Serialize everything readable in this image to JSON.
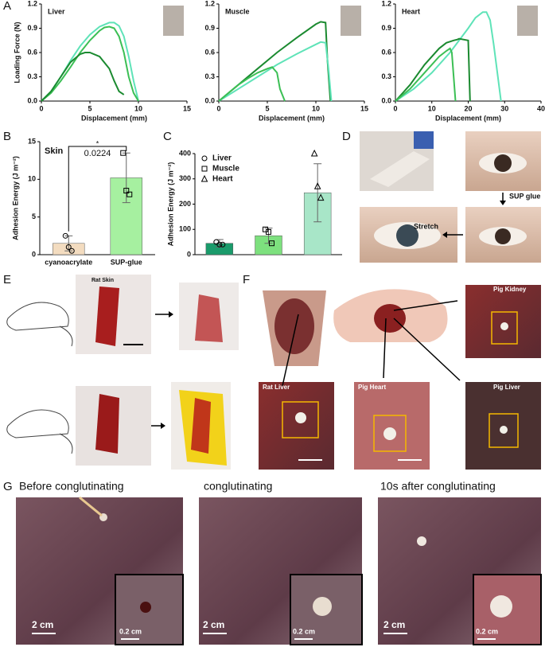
{
  "chart_data": [
    {
      "type": "line",
      "title": "Liver",
      "xlabel": "Displacement (mm)",
      "ylabel": "Loading Force (N)",
      "xlim": [
        0,
        15
      ],
      "xticks": [
        0,
        5,
        10,
        15
      ],
      "ylim": [
        0,
        1.2
      ],
      "yticks": [
        {
          "value": 0,
          "label": "0.0"
        },
        {
          "value": 0.3,
          "label": "0.3"
        },
        {
          "value": 0.6,
          "label": "0.6"
        },
        {
          "value": 0.9,
          "label": "0.9"
        },
        {
          "value": 1.2,
          "label": "1.2"
        }
      ],
      "series": [
        {
          "color": "#5fe3b8",
          "x": [
            0,
            1,
            2,
            3,
            4,
            5,
            6,
            7,
            7.5,
            8,
            8.5,
            9,
            9.5,
            10
          ],
          "values": [
            0,
            0.12,
            0.3,
            0.5,
            0.68,
            0.82,
            0.92,
            0.97,
            0.97,
            0.93,
            0.8,
            0.55,
            0.25,
            0
          ]
        },
        {
          "color": "#3cbf55",
          "x": [
            0,
            1,
            2,
            3,
            4,
            5,
            6,
            6.5,
            7,
            7.5,
            8,
            8.5,
            9,
            9.5,
            10
          ],
          "values": [
            0,
            0.1,
            0.25,
            0.42,
            0.6,
            0.75,
            0.87,
            0.91,
            0.92,
            0.9,
            0.8,
            0.6,
            0.3,
            0.1,
            0
          ]
        },
        {
          "color": "#1b8a30",
          "x": [
            0,
            1,
            2,
            3,
            4,
            4.5,
            5,
            6,
            7,
            7.5,
            8,
            8.5
          ],
          "values": [
            0,
            0.12,
            0.3,
            0.48,
            0.58,
            0.6,
            0.6,
            0.55,
            0.4,
            0.25,
            0.12,
            0.08
          ]
        }
      ]
    },
    {
      "type": "line",
      "title": "Muscle",
      "xlabel": "Displacement (mm)",
      "xlim": [
        0,
        15
      ],
      "xticks": [
        0,
        5,
        10,
        15
      ],
      "ylim": [
        0,
        1.2
      ],
      "yticks": [
        {
          "value": 0,
          "label": "0.0"
        },
        {
          "value": 0.3,
          "label": "0.3"
        },
        {
          "value": 0.6,
          "label": "0.6"
        },
        {
          "value": 0.9,
          "label": "0.9"
        },
        {
          "value": 1.2,
          "label": "1.2"
        }
      ],
      "series": [
        {
          "color": "#1b8a30",
          "x": [
            0,
            2,
            4,
            6,
            8,
            10,
            10.5,
            11,
            11.2,
            11.5
          ],
          "values": [
            0,
            0.2,
            0.4,
            0.6,
            0.78,
            0.95,
            0.98,
            0.97,
            0.5,
            0
          ]
        },
        {
          "color": "#5fe3b8",
          "x": [
            0,
            2,
            4,
            6,
            8,
            10,
            10.5,
            11,
            11.3,
            11.6
          ],
          "values": [
            0,
            0.15,
            0.3,
            0.45,
            0.58,
            0.7,
            0.73,
            0.72,
            0.4,
            0
          ]
        },
        {
          "color": "#3cbf55",
          "x": [
            0,
            1,
            2,
            3,
            4,
            5,
            5.5,
            6,
            6.3,
            6.8
          ],
          "values": [
            0,
            0.1,
            0.2,
            0.28,
            0.35,
            0.4,
            0.42,
            0.35,
            0.15,
            0
          ]
        }
      ]
    },
    {
      "type": "line",
      "title": "Heart",
      "xlabel": "Displacement (mm)",
      "xlim": [
        0,
        40
      ],
      "xticks": [
        0,
        10,
        20,
        30,
        40
      ],
      "ylim": [
        0,
        1.2
      ],
      "yticks": [
        {
          "value": 0,
          "label": "0.0"
        },
        {
          "value": 0.3,
          "label": "0.3"
        },
        {
          "value": 0.6,
          "label": "0.6"
        },
        {
          "value": 0.9,
          "label": "0.9"
        },
        {
          "value": 1.2,
          "label": "1.2"
        }
      ],
      "series": [
        {
          "color": "#5fe3b8",
          "x": [
            0,
            5,
            10,
            15,
            20,
            22,
            24,
            25,
            26,
            27,
            28,
            29
          ],
          "values": [
            0,
            0.15,
            0.35,
            0.6,
            0.9,
            1.03,
            1.1,
            1.1,
            1.0,
            0.7,
            0.35,
            0
          ]
        },
        {
          "color": "#1b8a30",
          "x": [
            0,
            4,
            8,
            12,
            14,
            16,
            17,
            17.5,
            20,
            20.5
          ],
          "values": [
            0,
            0.2,
            0.45,
            0.65,
            0.72,
            0.75,
            0.76,
            0.77,
            0.75,
            0
          ]
        },
        {
          "color": "#3cbf55",
          "x": [
            0,
            4,
            8,
            12,
            14,
            15,
            15.5,
            16,
            16.5
          ],
          "values": [
            0,
            0.15,
            0.35,
            0.55,
            0.62,
            0.65,
            0.6,
            0.3,
            0
          ]
        }
      ]
    },
    {
      "type": "bar",
      "title": "Skin",
      "ylabel": "Adhesion Energy (J m⁻²)",
      "categories": [
        "cyanoacrylate",
        "SUP-glue"
      ],
      "values": [
        1.5,
        10.2
      ],
      "errors": [
        1.0,
        3.3
      ],
      "colors": [
        "#f3dcc0",
        "#a6f0a0"
      ],
      "points": [
        [
          2.5,
          1.0,
          0.5
        ],
        [
          13.5,
          8.5,
          8.0
        ]
      ],
      "markers": [
        "circle",
        "square"
      ],
      "ylim": [
        0,
        15
      ],
      "yticks": [
        0,
        5,
        10,
        15
      ],
      "annotations": [
        "*",
        "0.0224"
      ]
    },
    {
      "type": "bar",
      "ylabel": "Adhesion Energy (J m⁻²)",
      "legend": "upper left",
      "categories": [
        "Liver",
        "Muscle",
        "Heart"
      ],
      "values": [
        45,
        75,
        245
      ],
      "errors": [
        15,
        30,
        115
      ],
      "colors": [
        "#1a9b6b",
        "#7de07e",
        "#a8e6c8"
      ],
      "points": [
        [
          50,
          40,
          40
        ],
        [
          100,
          90,
          45
        ],
        [
          400,
          270,
          225
        ]
      ],
      "markers": [
        "circle",
        "square",
        "triangle"
      ],
      "ylim": [
        0,
        400
      ],
      "yticks": [
        0,
        100,
        200,
        300,
        400
      ]
    }
  ],
  "panels": {
    "letters": [
      "A",
      "B",
      "C",
      "D",
      "E",
      "F",
      "G"
    ],
    "D": [
      "SUP glue",
      "Stretch"
    ],
    "E": [
      "Rat Skin"
    ],
    "F": [
      "Pig Kidney",
      "Rat Liver",
      "Pig Heart",
      "Pig Liver"
    ],
    "G": [
      "Before conglutinating",
      "conglutinating",
      "10s after conglutinating"
    ],
    "G_scale": [
      "2 cm",
      "0.2 cm",
      "2 cm",
      "0.2 cm",
      "2 cm",
      "0.2 cm"
    ]
  }
}
